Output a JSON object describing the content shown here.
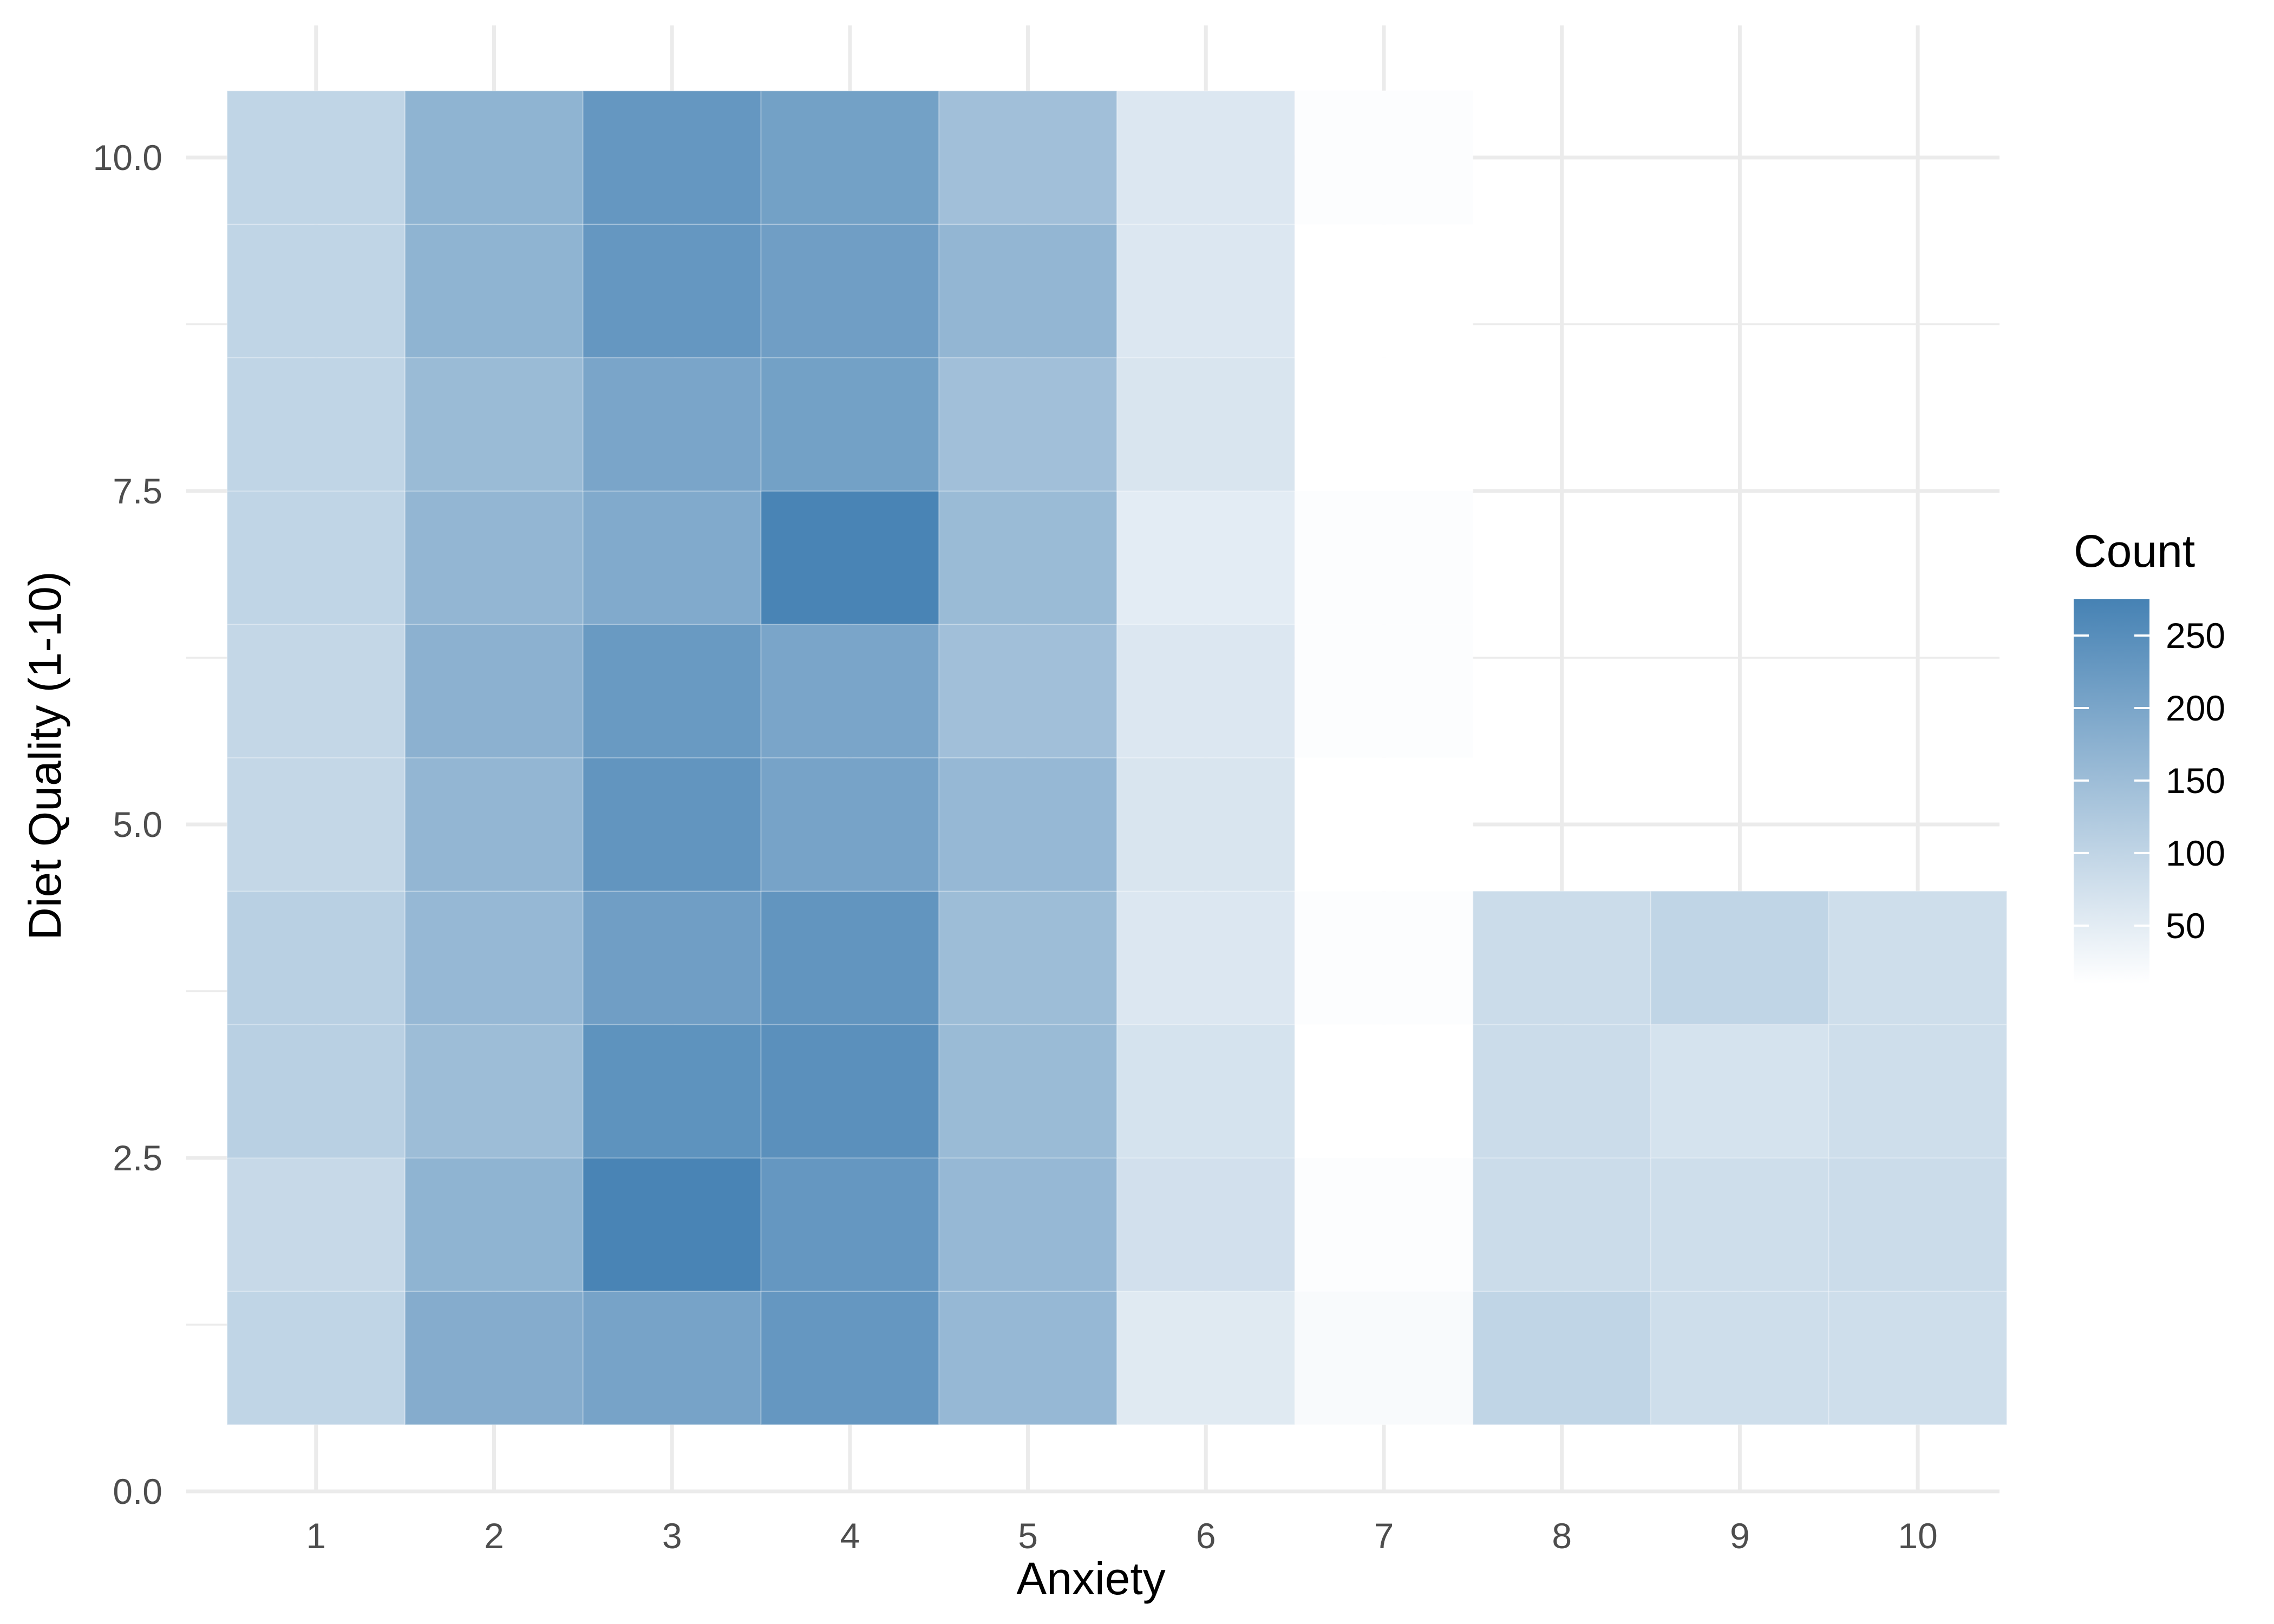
{
  "chart_data": {
    "type": "heatmap",
    "title": "",
    "xlabel": "Anxiety",
    "ylabel": "Diet Quality (1-10)",
    "x_ticks": [
      "1",
      "2",
      "3",
      "4",
      "5",
      "6",
      "7",
      "8",
      "9",
      "10"
    ],
    "y_ticks": [
      "0.0",
      "2.5",
      "5.0",
      "7.5",
      "10.0"
    ],
    "y_tick_values": [
      0,
      2.5,
      5,
      7.5,
      10
    ],
    "xlim": [
      0.5,
      10.5
    ],
    "ylim": [
      0,
      10.5
    ],
    "grid": true,
    "legend": {
      "title": "Count",
      "position": "right",
      "ticks": [
        "50",
        "100",
        "150",
        "200",
        "250"
      ],
      "tick_values": [
        50,
        100,
        150,
        200,
        250
      ],
      "range": [
        10,
        275
      ],
      "low_color": "#ffffff",
      "high_color": "#4682b4"
    },
    "cells": [
      {
        "x": 1,
        "y": 1,
        "count": 100
      },
      {
        "x": 2,
        "y": 1,
        "count": 185
      },
      {
        "x": 3,
        "y": 1,
        "count": 205
      },
      {
        "x": 4,
        "y": 1,
        "count": 230
      },
      {
        "x": 5,
        "y": 1,
        "count": 160
      },
      {
        "x": 6,
        "y": 1,
        "count": 55
      },
      {
        "x": 7,
        "y": 1,
        "count": 20
      },
      {
        "x": 8,
        "y": 1,
        "count": 100
      },
      {
        "x": 9,
        "y": 1,
        "count": 80
      },
      {
        "x": 10,
        "y": 1,
        "count": 80
      },
      {
        "x": 1,
        "y": 2,
        "count": 90
      },
      {
        "x": 2,
        "y": 2,
        "count": 170
      },
      {
        "x": 3,
        "y": 2,
        "count": 270
      },
      {
        "x": 4,
        "y": 2,
        "count": 230
      },
      {
        "x": 5,
        "y": 2,
        "count": 160
      },
      {
        "x": 6,
        "y": 2,
        "count": 75
      },
      {
        "x": 7,
        "y": 2,
        "count": 15
      },
      {
        "x": 8,
        "y": 2,
        "count": 85
      },
      {
        "x": 9,
        "y": 2,
        "count": 80
      },
      {
        "x": 10,
        "y": 2,
        "count": 85
      },
      {
        "x": 1,
        "y": 3,
        "count": 110
      },
      {
        "x": 2,
        "y": 3,
        "count": 150
      },
      {
        "x": 3,
        "y": 3,
        "count": 240
      },
      {
        "x": 4,
        "y": 3,
        "count": 245
      },
      {
        "x": 5,
        "y": 3,
        "count": 155
      },
      {
        "x": 6,
        "y": 3,
        "count": 70
      },
      {
        "x": 7,
        "y": 3,
        "count": 10
      },
      {
        "x": 8,
        "y": 3,
        "count": 85
      },
      {
        "x": 9,
        "y": 3,
        "count": 70
      },
      {
        "x": 10,
        "y": 3,
        "count": 80
      },
      {
        "x": 1,
        "y": 4,
        "count": 110
      },
      {
        "x": 2,
        "y": 4,
        "count": 160
      },
      {
        "x": 3,
        "y": 4,
        "count": 215
      },
      {
        "x": 4,
        "y": 4,
        "count": 235
      },
      {
        "x": 5,
        "y": 4,
        "count": 150
      },
      {
        "x": 6,
        "y": 4,
        "count": 60
      },
      {
        "x": 7,
        "y": 4,
        "count": 15
      },
      {
        "x": 8,
        "y": 4,
        "count": 85
      },
      {
        "x": 9,
        "y": 4,
        "count": 100
      },
      {
        "x": 10,
        "y": 4,
        "count": 80
      },
      {
        "x": 1,
        "y": 5,
        "count": 95
      },
      {
        "x": 2,
        "y": 5,
        "count": 165
      },
      {
        "x": 3,
        "y": 5,
        "count": 235
      },
      {
        "x": 4,
        "y": 5,
        "count": 205
      },
      {
        "x": 5,
        "y": 5,
        "count": 160
      },
      {
        "x": 6,
        "y": 5,
        "count": 65
      },
      {
        "x": 7,
        "y": 5,
        "count": 10
      },
      {
        "x": 1,
        "y": 6,
        "count": 95
      },
      {
        "x": 2,
        "y": 6,
        "count": 175
      },
      {
        "x": 3,
        "y": 6,
        "count": 225
      },
      {
        "x": 4,
        "y": 6,
        "count": 200
      },
      {
        "x": 5,
        "y": 6,
        "count": 145
      },
      {
        "x": 6,
        "y": 6,
        "count": 60
      },
      {
        "x": 7,
        "y": 6,
        "count": 15
      },
      {
        "x": 1,
        "y": 7,
        "count": 100
      },
      {
        "x": 2,
        "y": 7,
        "count": 165
      },
      {
        "x": 3,
        "y": 7,
        "count": 190
      },
      {
        "x": 4,
        "y": 7,
        "count": 270
      },
      {
        "x": 5,
        "y": 7,
        "count": 155
      },
      {
        "x": 6,
        "y": 7,
        "count": 50
      },
      {
        "x": 7,
        "y": 7,
        "count": 15
      },
      {
        "x": 1,
        "y": 8,
        "count": 100
      },
      {
        "x": 2,
        "y": 8,
        "count": 155
      },
      {
        "x": 3,
        "y": 8,
        "count": 200
      },
      {
        "x": 4,
        "y": 8,
        "count": 210
      },
      {
        "x": 5,
        "y": 8,
        "count": 145
      },
      {
        "x": 6,
        "y": 8,
        "count": 65
      },
      {
        "x": 7,
        "y": 8,
        "count": 10
      },
      {
        "x": 1,
        "y": 9,
        "count": 100
      },
      {
        "x": 2,
        "y": 9,
        "count": 170
      },
      {
        "x": 3,
        "y": 9,
        "count": 230
      },
      {
        "x": 4,
        "y": 9,
        "count": 215
      },
      {
        "x": 5,
        "y": 9,
        "count": 165
      },
      {
        "x": 6,
        "y": 9,
        "count": 60
      },
      {
        "x": 7,
        "y": 9,
        "count": 10
      },
      {
        "x": 1,
        "y": 10,
        "count": 100
      },
      {
        "x": 2,
        "y": 10,
        "count": 170
      },
      {
        "x": 3,
        "y": 10,
        "count": 230
      },
      {
        "x": 4,
        "y": 10,
        "count": 210
      },
      {
        "x": 5,
        "y": 10,
        "count": 145
      },
      {
        "x": 6,
        "y": 10,
        "count": 60
      },
      {
        "x": 7,
        "y": 10,
        "count": 15
      }
    ]
  }
}
